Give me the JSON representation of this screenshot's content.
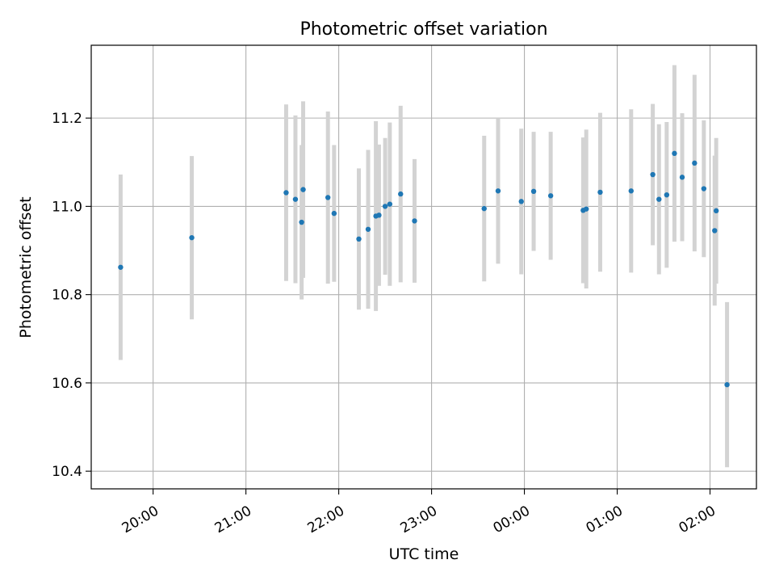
{
  "chart_data": {
    "type": "scatter",
    "title": "Photometric offset variation",
    "xlabel": "UTC time",
    "ylabel": "Photometric offset",
    "x_ticks": [
      "20:00",
      "21:00",
      "22:00",
      "23:00",
      "00:00",
      "01:00",
      "02:00"
    ],
    "y_ticks": [
      "10.4",
      "10.6",
      "10.8",
      "11.0",
      "11.2"
    ],
    "xlim": [
      "19:20",
      "02:30"
    ],
    "ylim": [
      10.36,
      11.365
    ],
    "grid": true,
    "colors": {
      "point": "#1f77b4",
      "errorbar": "#d3d3d3",
      "grid": "#b0b0b0"
    },
    "series": [
      {
        "points": [
          {
            "t": "19:39",
            "y": 10.862,
            "err": 0.21
          },
          {
            "t": "20:25",
            "y": 10.929,
            "err": 0.185
          },
          {
            "t": "21:26",
            "y": 11.031,
            "err": 0.2
          },
          {
            "t": "21:32",
            "y": 11.016,
            "err": 0.19
          },
          {
            "t": "21:36",
            "y": 10.964,
            "err": 0.175
          },
          {
            "t": "21:37",
            "y": 11.038,
            "err": 0.2
          },
          {
            "t": "21:53",
            "y": 11.02,
            "err": 0.195
          },
          {
            "t": "21:57",
            "y": 10.984,
            "err": 0.155
          },
          {
            "t": "22:13",
            "y": 10.926,
            "err": 0.16
          },
          {
            "t": "22:19",
            "y": 10.948,
            "err": 0.18
          },
          {
            "t": "22:24",
            "y": 10.978,
            "err": 0.215
          },
          {
            "t": "22:26",
            "y": 10.98,
            "err": 0.16
          },
          {
            "t": "22:30",
            "y": 11.0,
            "err": 0.155
          },
          {
            "t": "22:33",
            "y": 11.005,
            "err": 0.185
          },
          {
            "t": "22:40",
            "y": 11.028,
            "err": 0.2
          },
          {
            "t": "22:49",
            "y": 10.967,
            "err": 0.14
          },
          {
            "t": "23:34",
            "y": 10.995,
            "err": 0.165
          },
          {
            "t": "23:43",
            "y": 11.035,
            "err": 0.165
          },
          {
            "t": "23:58",
            "y": 11.011,
            "err": 0.165
          },
          {
            "t": "00:06",
            "y": 11.034,
            "err": 0.135
          },
          {
            "t": "00:17",
            "y": 11.024,
            "err": 0.145
          },
          {
            "t": "00:38",
            "y": 10.991,
            "err": 0.165
          },
          {
            "t": "00:40",
            "y": 10.994,
            "err": 0.18
          },
          {
            "t": "00:49",
            "y": 11.032,
            "err": 0.18
          },
          {
            "t": "01:09",
            "y": 11.035,
            "err": 0.185
          },
          {
            "t": "01:23",
            "y": 11.072,
            "err": 0.16
          },
          {
            "t": "01:27",
            "y": 11.016,
            "err": 0.17
          },
          {
            "t": "01:32",
            "y": 11.026,
            "err": 0.165
          },
          {
            "t": "01:37",
            "y": 11.12,
            "err": 0.2
          },
          {
            "t": "01:42",
            "y": 11.066,
            "err": 0.145
          },
          {
            "t": "01:50",
            "y": 11.098,
            "err": 0.2
          },
          {
            "t": "01:56",
            "y": 11.04,
            "err": 0.155
          },
          {
            "t": "02:03",
            "y": 10.945,
            "err": 0.17
          },
          {
            "t": "02:04",
            "y": 10.99,
            "err": 0.165
          },
          {
            "t": "02:11",
            "y": 10.596,
            "err": 0.187
          }
        ]
      }
    ]
  }
}
